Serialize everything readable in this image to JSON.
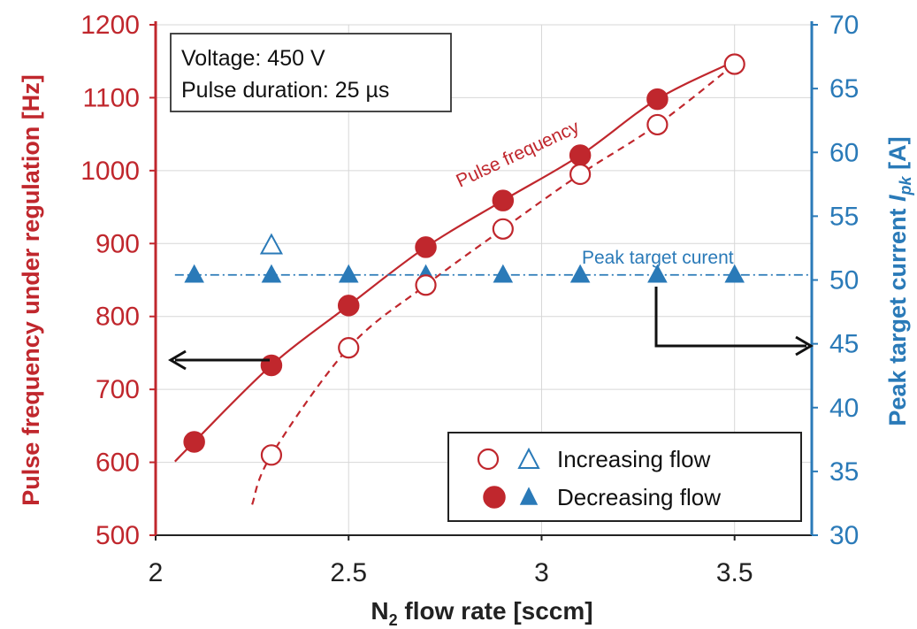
{
  "chart_data": {
    "type": "scatter",
    "xlabel": "N2 flow rate [sccm]",
    "xlabel_main": "N",
    "xlabel_sub": "2",
    "xlabel_rest": " flow rate [sccm]",
    "xlim": [
      2.0,
      3.7
    ],
    "xticks": [
      "2",
      "2.5",
      "3",
      "3.5"
    ],
    "xtick_values": [
      2.0,
      2.5,
      3.0,
      3.5
    ],
    "ylabel_left": "Pulse frequency under regulation [Hz]",
    "ylim_left": [
      500,
      1200
    ],
    "yticks_left": [
      "500",
      "600",
      "700",
      "800",
      "900",
      "1000",
      "1100",
      "1200"
    ],
    "ylabel_right": "Peak target current Ipk [A]",
    "ylabel_right_main": "Peak target current ",
    "ylabel_right_italic": "I",
    "ylabel_right_sub": "pk",
    "ylabel_right_unit": " [A]",
    "ylim_right": [
      30,
      70
    ],
    "yticks_right": [
      "30",
      "35",
      "40",
      "45",
      "50",
      "55",
      "60",
      "65",
      "70"
    ],
    "grid": true,
    "legend_placement": "bottom-right",
    "series": [
      {
        "name": "Increasing flow",
        "axis": "left",
        "marker": "open-circle",
        "color": "#c0272d",
        "line": "dashed",
        "x": [
          2.3,
          2.5,
          2.7,
          2.9,
          3.1,
          3.3,
          3.5
        ],
        "y": [
          610,
          757,
          843,
          920,
          995,
          1063,
          1146
        ]
      },
      {
        "name": "Decreasing flow",
        "axis": "left",
        "marker": "filled-circle",
        "color": "#c0272d",
        "line": "solid",
        "x": [
          2.1,
          2.3,
          2.5,
          2.7,
          2.9,
          3.1,
          3.3
        ],
        "y": [
          628,
          733,
          815,
          895,
          959,
          1021,
          1098
        ]
      },
      {
        "name": "Increasing flow",
        "axis": "right",
        "marker": "open-triangle",
        "color": "#2a7ab8",
        "x": [
          2.3
        ],
        "y": [
          52.7
        ]
      },
      {
        "name": "Decreasing flow",
        "axis": "right",
        "marker": "filled-triangle",
        "color": "#2a7ab8",
        "x": [
          2.1,
          2.3,
          2.5,
          2.7,
          2.9,
          3.1,
          3.3,
          3.5
        ],
        "y": [
          50.4,
          50.4,
          50.4,
          50.4,
          50.4,
          50.4,
          50.4,
          50.4
        ]
      }
    ],
    "reference_line": {
      "y_right": 50.4,
      "style": "dash-dot",
      "color": "#2a7ab8"
    },
    "annotations": {
      "textbox_line1": "Voltage: 450 V",
      "textbox_line2": "Pulse duration: 25 µs",
      "pulse_frequency": "Pulse frequency",
      "peak_target": "Peak target curent"
    },
    "legend": {
      "increasing": "Increasing flow",
      "decreasing": "Decreasing flow"
    }
  }
}
